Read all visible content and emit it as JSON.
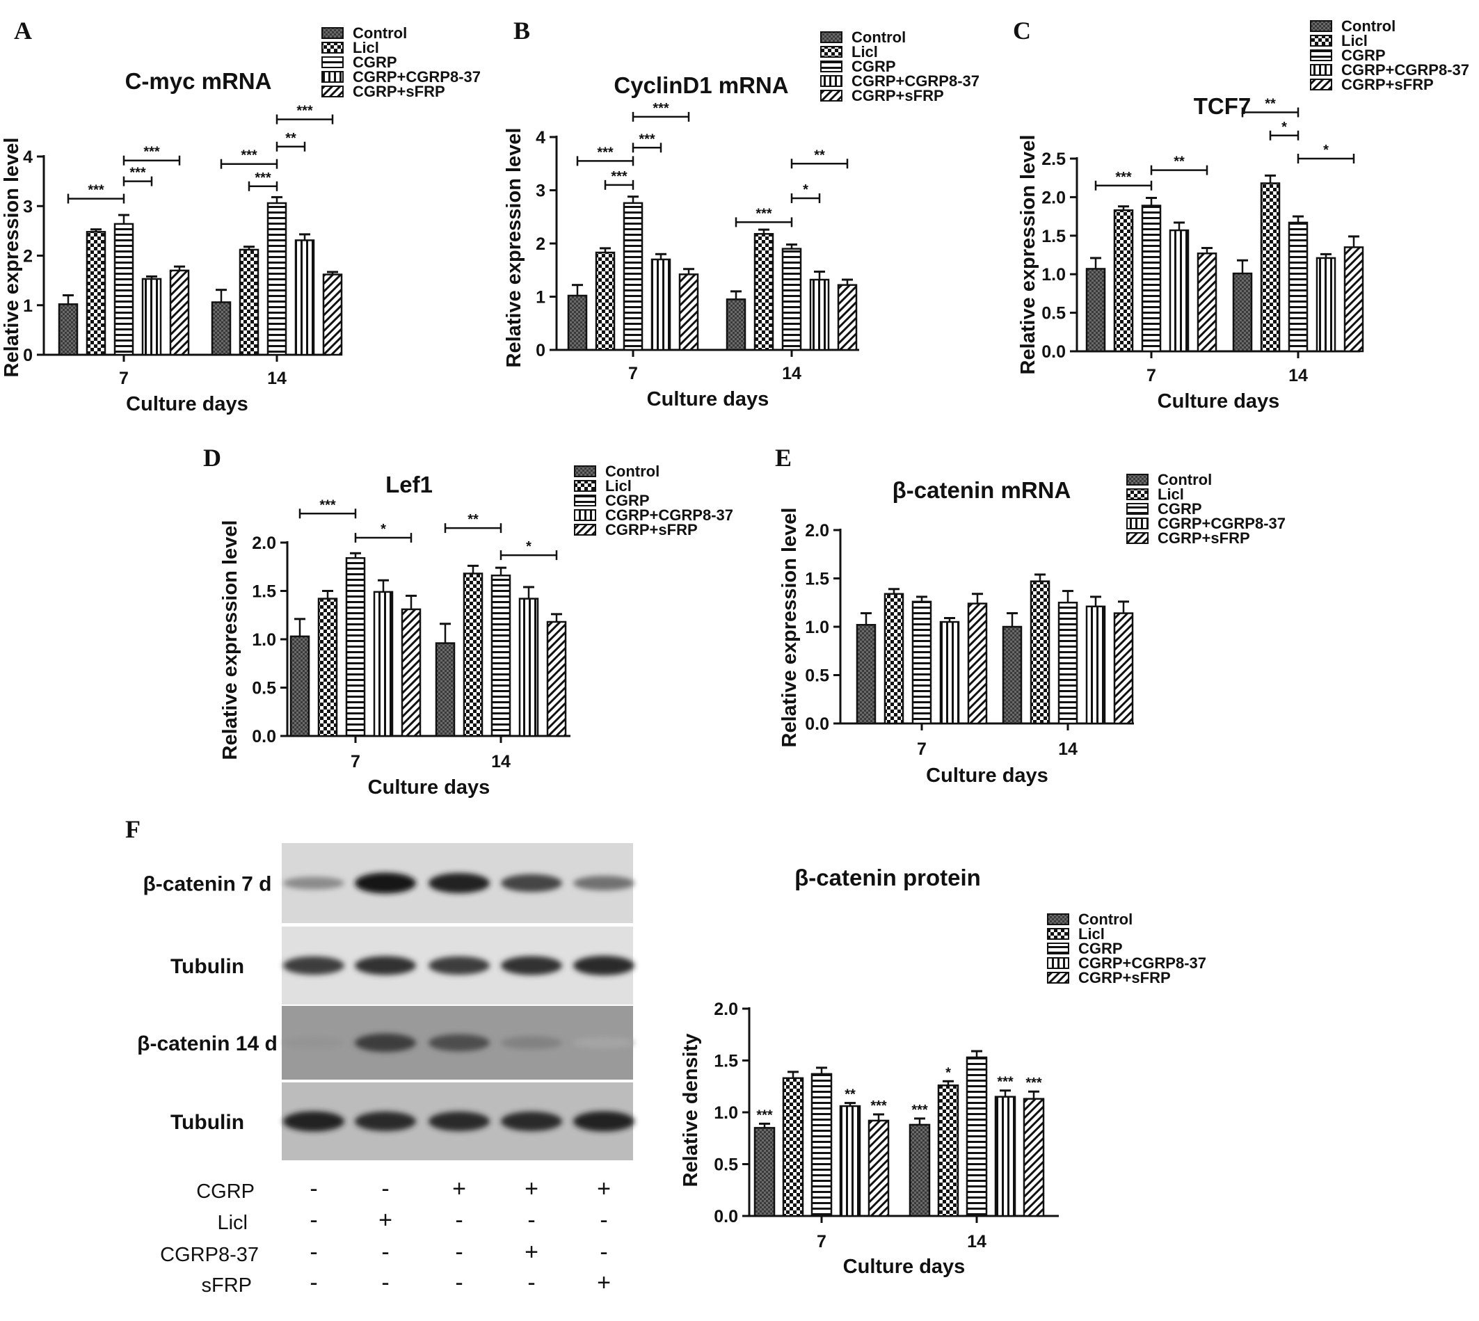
{
  "figure": {
    "panel_letters": [
      "A",
      "B",
      "C",
      "D",
      "E",
      "F"
    ],
    "group_names": [
      "Control",
      "Licl",
      "CGRP",
      "CGRP+CGRP8-37",
      "CGRP+sFRP"
    ],
    "pattern_order": [
      "dense",
      "check",
      "hstripe",
      "vstripe",
      "diag"
    ]
  },
  "chart_data": [
    {
      "id": "A",
      "type": "bar",
      "title": "C-myc mRNA",
      "xlabel": "Culture days",
      "ylabel": "Relative expression level",
      "categories": [
        "7",
        "14"
      ],
      "ylim": [
        0,
        4
      ],
      "yticks": [
        "0",
        "1",
        "2",
        "3",
        "4"
      ],
      "series": [
        {
          "name": "Control",
          "values": [
            1.02,
            1.06
          ],
          "errors": [
            0.18,
            0.25
          ]
        },
        {
          "name": "Licl",
          "values": [
            2.48,
            2.12
          ],
          "errors": [
            0.05,
            0.06
          ]
        },
        {
          "name": "CGRP",
          "values": [
            2.64,
            3.06
          ],
          "errors": [
            0.18,
            0.12
          ]
        },
        {
          "name": "CGRP+CGRP8-37",
          "values": [
            1.53,
            2.31
          ],
          "errors": [
            0.05,
            0.12
          ]
        },
        {
          "name": "CGRP+sFRP",
          "values": [
            1.7,
            1.62
          ],
          "errors": [
            0.08,
            0.05
          ]
        }
      ],
      "brackets": [
        {
          "from": [
            0,
            0
          ],
          "to": [
            0,
            2
          ],
          "y": 3.15,
          "label": "***"
        },
        {
          "from": [
            0,
            2
          ],
          "to": [
            0,
            3
          ],
          "y": 3.5,
          "label": "***"
        },
        {
          "from": [
            0,
            2
          ],
          "to": [
            0,
            4
          ],
          "y": 3.92,
          "label": "***"
        },
        {
          "from": [
            1,
            0
          ],
          "to": [
            1,
            2
          ],
          "y": 3.85,
          "label": "***"
        },
        {
          "from": [
            1,
            1
          ],
          "to": [
            1,
            2
          ],
          "y": 3.4,
          "label": "***"
        },
        {
          "from": [
            1,
            2
          ],
          "to": [
            1,
            3
          ],
          "y": 4.2,
          "label": "**"
        },
        {
          "from": [
            1,
            2
          ],
          "to": [
            1,
            4
          ],
          "y": 4.75,
          "label": "***"
        }
      ]
    },
    {
      "id": "B",
      "type": "bar",
      "title": "CyclinD1 mRNA",
      "xlabel": "Culture days",
      "ylabel": "Relative expression level",
      "categories": [
        "7",
        "14"
      ],
      "ylim": [
        0,
        4
      ],
      "yticks": [
        "0",
        "1",
        "2",
        "3",
        "4"
      ],
      "series": [
        {
          "name": "Control",
          "values": [
            1.02,
            0.95
          ],
          "errors": [
            0.2,
            0.15
          ]
        },
        {
          "name": "Licl",
          "values": [
            1.83,
            2.18
          ],
          "errors": [
            0.08,
            0.08
          ]
        },
        {
          "name": "CGRP",
          "values": [
            2.76,
            1.9
          ],
          "errors": [
            0.12,
            0.08
          ]
        },
        {
          "name": "CGRP+CGRP8-37",
          "values": [
            1.7,
            1.32
          ],
          "errors": [
            0.1,
            0.15
          ]
        },
        {
          "name": "CGRP+sFRP",
          "values": [
            1.42,
            1.22
          ],
          "errors": [
            0.1,
            0.1
          ]
        }
      ],
      "brackets": [
        {
          "from": [
            0,
            1
          ],
          "to": [
            0,
            2
          ],
          "y": 3.1,
          "label": "***"
        },
        {
          "from": [
            0,
            0
          ],
          "to": [
            0,
            2
          ],
          "y": 3.55,
          "label": "***"
        },
        {
          "from": [
            0,
            2
          ],
          "to": [
            0,
            3
          ],
          "y": 3.8,
          "label": "***"
        },
        {
          "from": [
            0,
            2
          ],
          "to": [
            0,
            4
          ],
          "y": 4.38,
          "label": "***"
        },
        {
          "from": [
            1,
            0
          ],
          "to": [
            1,
            2
          ],
          "y": 2.4,
          "label": "***"
        },
        {
          "from": [
            1,
            2
          ],
          "to": [
            1,
            3
          ],
          "y": 2.85,
          "label": "*"
        },
        {
          "from": [
            1,
            2
          ],
          "to": [
            1,
            4
          ],
          "y": 3.5,
          "label": "**"
        }
      ]
    },
    {
      "id": "C",
      "type": "bar",
      "title": "TCF7",
      "xlabel": "Culture days",
      "ylabel": "Relative expression level",
      "categories": [
        "7",
        "14"
      ],
      "ylim": [
        0,
        2.5
      ],
      "yticks": [
        "0.0",
        "0.5",
        "1.0",
        "1.5",
        "2.0",
        "2.5"
      ],
      "series": [
        {
          "name": "Control",
          "values": [
            1.07,
            1.01
          ],
          "errors": [
            0.14,
            0.17
          ]
        },
        {
          "name": "Licl",
          "values": [
            1.83,
            2.18
          ],
          "errors": [
            0.05,
            0.1
          ]
        },
        {
          "name": "CGRP",
          "values": [
            1.89,
            1.67
          ],
          "errors": [
            0.1,
            0.08
          ]
        },
        {
          "name": "CGRP+CGRP8-37",
          "values": [
            1.57,
            1.21
          ],
          "errors": [
            0.1,
            0.05
          ]
        },
        {
          "name": "CGRP+sFRP",
          "values": [
            1.27,
            1.35
          ],
          "errors": [
            0.07,
            0.14
          ]
        }
      ],
      "brackets": [
        {
          "from": [
            0,
            0
          ],
          "to": [
            0,
            2
          ],
          "y": 2.15,
          "label": "***"
        },
        {
          "from": [
            0,
            2
          ],
          "to": [
            0,
            4
          ],
          "y": 2.35,
          "label": "**"
        },
        {
          "from": [
            1,
            0
          ],
          "to": [
            1,
            2
          ],
          "y": 3.1,
          "label": "**"
        },
        {
          "from": [
            1,
            1
          ],
          "to": [
            1,
            2
          ],
          "y": 2.8,
          "label": "*"
        },
        {
          "from": [
            1,
            2
          ],
          "to": [
            1,
            4
          ],
          "y": 2.5,
          "label": "*"
        }
      ]
    },
    {
      "id": "D",
      "type": "bar",
      "title": "Lef1",
      "xlabel": "Culture days",
      "ylabel": "Relative expression level",
      "categories": [
        "7",
        "14"
      ],
      "ylim": [
        0,
        2
      ],
      "yticks": [
        "0.0",
        "0.5",
        "1.0",
        "1.5",
        "2.0"
      ],
      "series": [
        {
          "name": "Control",
          "values": [
            1.03,
            0.96
          ],
          "errors": [
            0.18,
            0.2
          ]
        },
        {
          "name": "Licl",
          "values": [
            1.42,
            1.68
          ],
          "errors": [
            0.08,
            0.08
          ]
        },
        {
          "name": "CGRP",
          "values": [
            1.84,
            1.66
          ],
          "errors": [
            0.05,
            0.08
          ]
        },
        {
          "name": "CGRP+CGRP8-37",
          "values": [
            1.49,
            1.42
          ],
          "errors": [
            0.12,
            0.12
          ]
        },
        {
          "name": "CGRP+sFRP",
          "values": [
            1.31,
            1.18
          ],
          "errors": [
            0.14,
            0.08
          ]
        }
      ],
      "brackets": [
        {
          "from": [
            0,
            0
          ],
          "to": [
            0,
            2
          ],
          "y": 2.3,
          "label": "***"
        },
        {
          "from": [
            0,
            2
          ],
          "to": [
            0,
            4
          ],
          "y": 2.05,
          "label": "*"
        },
        {
          "from": [
            1,
            0
          ],
          "to": [
            1,
            2
          ],
          "y": 2.15,
          "label": "**"
        },
        {
          "from": [
            1,
            2
          ],
          "to": [
            1,
            4
          ],
          "y": 1.87,
          "label": "*"
        }
      ]
    },
    {
      "id": "E",
      "type": "bar",
      "title": "β-catenin mRNA",
      "xlabel": "Culture days",
      "ylabel": "Relative expression level",
      "categories": [
        "7",
        "14"
      ],
      "ylim": [
        0,
        2
      ],
      "yticks": [
        "0.0",
        "0.5",
        "1.0",
        "1.5",
        "2.0"
      ],
      "series": [
        {
          "name": "Control",
          "values": [
            1.02,
            1.0
          ],
          "errors": [
            0.12,
            0.14
          ]
        },
        {
          "name": "Licl",
          "values": [
            1.34,
            1.47
          ],
          "errors": [
            0.05,
            0.07
          ]
        },
        {
          "name": "CGRP",
          "values": [
            1.26,
            1.25
          ],
          "errors": [
            0.05,
            0.12
          ]
        },
        {
          "name": "CGRP+CGRP8-37",
          "values": [
            1.05,
            1.21
          ],
          "errors": [
            0.04,
            0.1
          ]
        },
        {
          "name": "CGRP+sFRP",
          "values": [
            1.24,
            1.14
          ],
          "errors": [
            0.1,
            0.12
          ]
        }
      ],
      "brackets": []
    },
    {
      "id": "F",
      "type": "bar",
      "title": "β-catenin protein",
      "xlabel": "Culture days",
      "ylabel": "Relative density",
      "categories": [
        "7",
        "14"
      ],
      "ylim": [
        0,
        2
      ],
      "yticks": [
        "0.0",
        "0.5",
        "1.0",
        "1.5",
        "2.0"
      ],
      "series": [
        {
          "name": "Control",
          "values": [
            0.85,
            0.88
          ],
          "errors": [
            0.04,
            0.06
          ],
          "stars": [
            "***",
            "***"
          ]
        },
        {
          "name": "Licl",
          "values": [
            1.33,
            1.26
          ],
          "errors": [
            0.06,
            0.04
          ],
          "stars": [
            "",
            "*"
          ]
        },
        {
          "name": "CGRP",
          "values": [
            1.37,
            1.53
          ],
          "errors": [
            0.06,
            0.06
          ],
          "stars": [
            "",
            ""
          ]
        },
        {
          "name": "CGRP+CGRP8-37",
          "values": [
            1.06,
            1.15
          ],
          "errors": [
            0.03,
            0.06
          ],
          "stars": [
            "**",
            "***"
          ]
        },
        {
          "name": "CGRP+sFRP",
          "values": [
            0.92,
            1.13
          ],
          "errors": [
            0.06,
            0.07
          ],
          "stars": [
            "***",
            "***"
          ]
        }
      ],
      "brackets": []
    }
  ],
  "western_blot": {
    "rows": [
      {
        "label": "β-catenin 7 d",
        "intensities": [
          0.35,
          1.0,
          0.95,
          0.75,
          0.5
        ],
        "bg": "#d8d8d8"
      },
      {
        "label": "Tubulin",
        "intensities": [
          0.8,
          0.85,
          0.8,
          0.85,
          0.9
        ],
        "bg": "#e0e0e0"
      },
      {
        "label": "β-catenin 14 d",
        "intensities": [
          0.3,
          0.8,
          0.7,
          0.4,
          0.2
        ],
        "bg": "#9a9a9a"
      },
      {
        "label": "Tubulin",
        "intensities": [
          0.95,
          0.9,
          0.9,
          0.9,
          0.95
        ],
        "bg": "#bcbcbc"
      }
    ],
    "conditions": [
      {
        "label": "CGRP",
        "signs": [
          "-",
          "-",
          "+",
          "+",
          "+"
        ]
      },
      {
        "label": "Licl",
        "signs": [
          "-",
          "+",
          "-",
          "-",
          "-"
        ]
      },
      {
        "label": "CGRP8-37",
        "signs": [
          "-",
          "-",
          "-",
          "+",
          "-"
        ]
      },
      {
        "label": "sFRP",
        "signs": [
          "-",
          "-",
          "-",
          "-",
          "+"
        ]
      }
    ]
  }
}
